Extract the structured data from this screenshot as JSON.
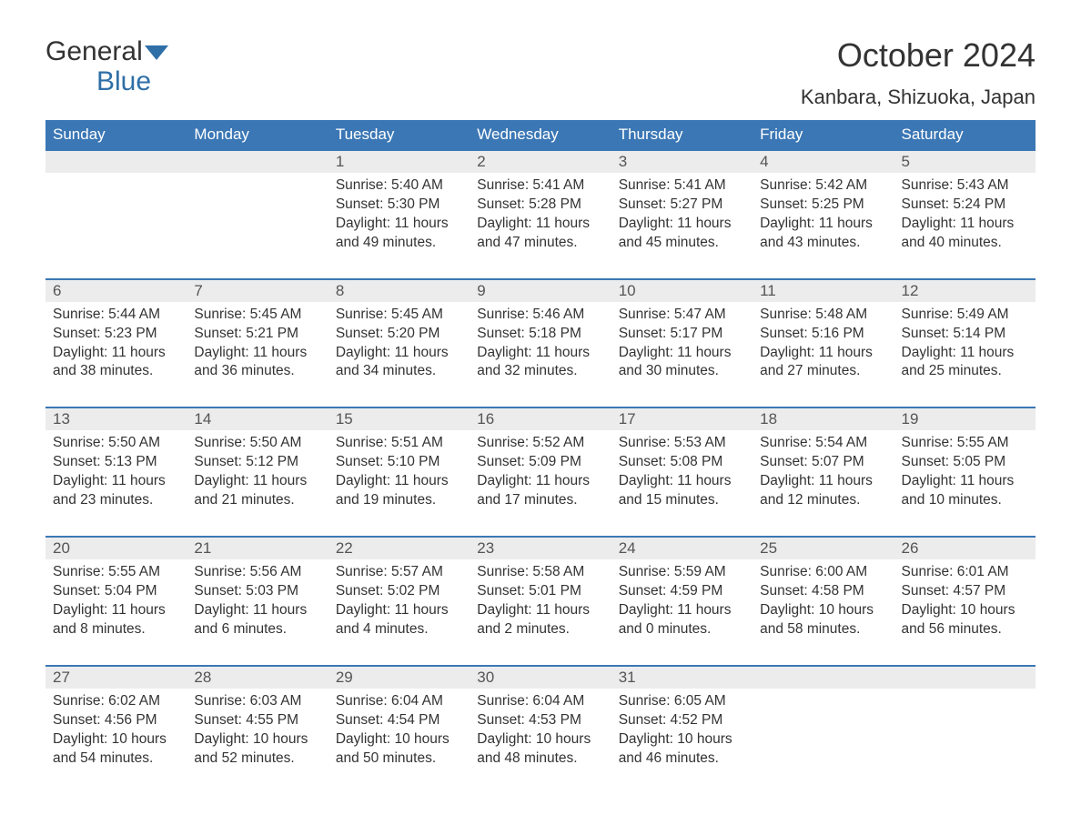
{
  "brand": {
    "line1": "General",
    "line2": "Blue"
  },
  "title": "October 2024",
  "location": "Kanbara, Shizuoka, Japan",
  "colors": {
    "header_bg": "#3b77b5",
    "header_text": "#ffffff",
    "daynum_bg": "#ececec",
    "row_divider": "#3b77b5",
    "text": "#333333",
    "brand_blue": "#2f6fa7",
    "background": "#ffffff"
  },
  "typography": {
    "title_fontsize": 36,
    "location_fontsize": 22,
    "weekday_fontsize": 17,
    "daynum_fontsize": 17,
    "body_fontsize": 15.5,
    "font_family": "Arial"
  },
  "layout": {
    "columns": 7,
    "rows": 5,
    "start_weekday": "Sunday"
  },
  "weekdays": [
    "Sunday",
    "Monday",
    "Tuesday",
    "Wednesday",
    "Thursday",
    "Friday",
    "Saturday"
  ],
  "weeks": [
    [
      null,
      null,
      {
        "n": "1",
        "sunrise": "5:40 AM",
        "sunset": "5:30 PM",
        "daylight": "11 hours and 49 minutes."
      },
      {
        "n": "2",
        "sunrise": "5:41 AM",
        "sunset": "5:28 PM",
        "daylight": "11 hours and 47 minutes."
      },
      {
        "n": "3",
        "sunrise": "5:41 AM",
        "sunset": "5:27 PM",
        "daylight": "11 hours and 45 minutes."
      },
      {
        "n": "4",
        "sunrise": "5:42 AM",
        "sunset": "5:25 PM",
        "daylight": "11 hours and 43 minutes."
      },
      {
        "n": "5",
        "sunrise": "5:43 AM",
        "sunset": "5:24 PM",
        "daylight": "11 hours and 40 minutes."
      }
    ],
    [
      {
        "n": "6",
        "sunrise": "5:44 AM",
        "sunset": "5:23 PM",
        "daylight": "11 hours and 38 minutes."
      },
      {
        "n": "7",
        "sunrise": "5:45 AM",
        "sunset": "5:21 PM",
        "daylight": "11 hours and 36 minutes."
      },
      {
        "n": "8",
        "sunrise": "5:45 AM",
        "sunset": "5:20 PM",
        "daylight": "11 hours and 34 minutes."
      },
      {
        "n": "9",
        "sunrise": "5:46 AM",
        "sunset": "5:18 PM",
        "daylight": "11 hours and 32 minutes."
      },
      {
        "n": "10",
        "sunrise": "5:47 AM",
        "sunset": "5:17 PM",
        "daylight": "11 hours and 30 minutes."
      },
      {
        "n": "11",
        "sunrise": "5:48 AM",
        "sunset": "5:16 PM",
        "daylight": "11 hours and 27 minutes."
      },
      {
        "n": "12",
        "sunrise": "5:49 AM",
        "sunset": "5:14 PM",
        "daylight": "11 hours and 25 minutes."
      }
    ],
    [
      {
        "n": "13",
        "sunrise": "5:50 AM",
        "sunset": "5:13 PM",
        "daylight": "11 hours and 23 minutes."
      },
      {
        "n": "14",
        "sunrise": "5:50 AM",
        "sunset": "5:12 PM",
        "daylight": "11 hours and 21 minutes."
      },
      {
        "n": "15",
        "sunrise": "5:51 AM",
        "sunset": "5:10 PM",
        "daylight": "11 hours and 19 minutes."
      },
      {
        "n": "16",
        "sunrise": "5:52 AM",
        "sunset": "5:09 PM",
        "daylight": "11 hours and 17 minutes."
      },
      {
        "n": "17",
        "sunrise": "5:53 AM",
        "sunset": "5:08 PM",
        "daylight": "11 hours and 15 minutes."
      },
      {
        "n": "18",
        "sunrise": "5:54 AM",
        "sunset": "5:07 PM",
        "daylight": "11 hours and 12 minutes."
      },
      {
        "n": "19",
        "sunrise": "5:55 AM",
        "sunset": "5:05 PM",
        "daylight": "11 hours and 10 minutes."
      }
    ],
    [
      {
        "n": "20",
        "sunrise": "5:55 AM",
        "sunset": "5:04 PM",
        "daylight": "11 hours and 8 minutes."
      },
      {
        "n": "21",
        "sunrise": "5:56 AM",
        "sunset": "5:03 PM",
        "daylight": "11 hours and 6 minutes."
      },
      {
        "n": "22",
        "sunrise": "5:57 AM",
        "sunset": "5:02 PM",
        "daylight": "11 hours and 4 minutes."
      },
      {
        "n": "23",
        "sunrise": "5:58 AM",
        "sunset": "5:01 PM",
        "daylight": "11 hours and 2 minutes."
      },
      {
        "n": "24",
        "sunrise": "5:59 AM",
        "sunset": "4:59 PM",
        "daylight": "11 hours and 0 minutes."
      },
      {
        "n": "25",
        "sunrise": "6:00 AM",
        "sunset": "4:58 PM",
        "daylight": "10 hours and 58 minutes."
      },
      {
        "n": "26",
        "sunrise": "6:01 AM",
        "sunset": "4:57 PM",
        "daylight": "10 hours and 56 minutes."
      }
    ],
    [
      {
        "n": "27",
        "sunrise": "6:02 AM",
        "sunset": "4:56 PM",
        "daylight": "10 hours and 54 minutes."
      },
      {
        "n": "28",
        "sunrise": "6:03 AM",
        "sunset": "4:55 PM",
        "daylight": "10 hours and 52 minutes."
      },
      {
        "n": "29",
        "sunrise": "6:04 AM",
        "sunset": "4:54 PM",
        "daylight": "10 hours and 50 minutes."
      },
      {
        "n": "30",
        "sunrise": "6:04 AM",
        "sunset": "4:53 PM",
        "daylight": "10 hours and 48 minutes."
      },
      {
        "n": "31",
        "sunrise": "6:05 AM",
        "sunset": "4:52 PM",
        "daylight": "10 hours and 46 minutes."
      },
      null,
      null
    ]
  ],
  "labels": {
    "sunrise": "Sunrise:",
    "sunset": "Sunset:",
    "daylight": "Daylight:"
  }
}
